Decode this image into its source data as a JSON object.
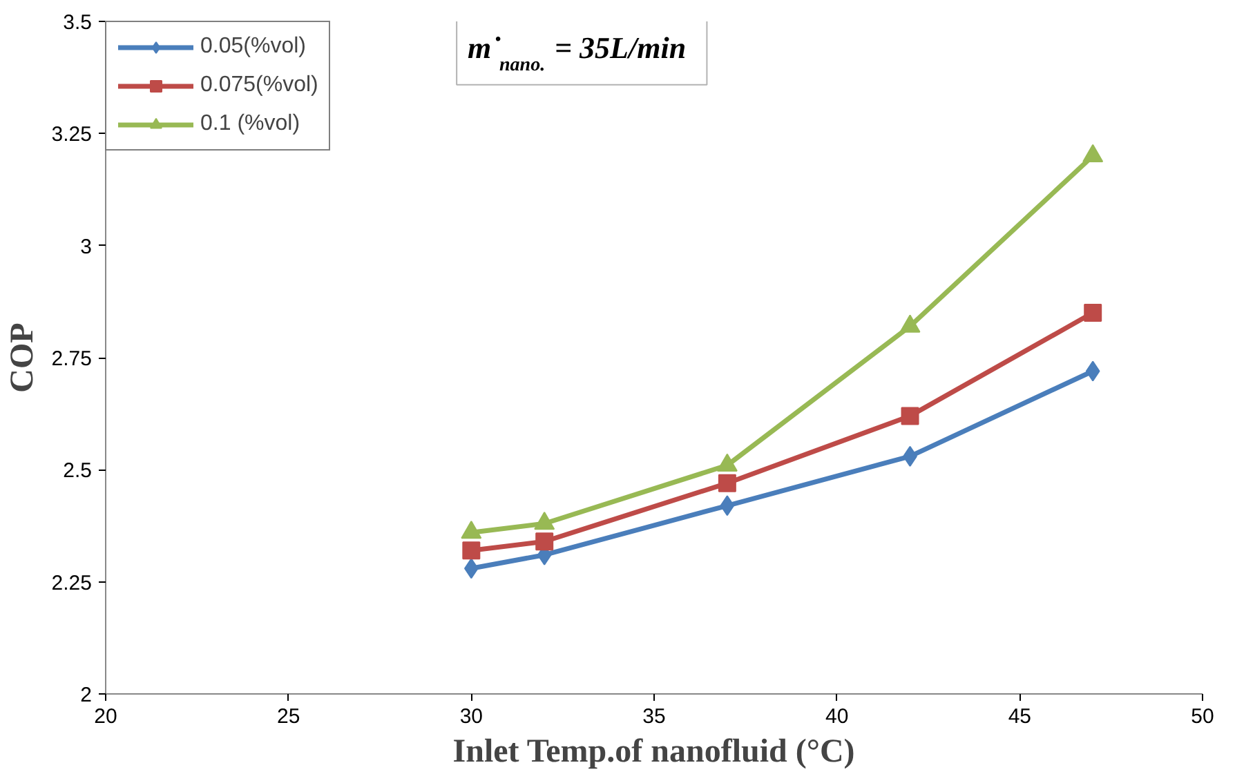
{
  "chart_data": {
    "type": "line",
    "xlabel": "Inlet Temp.of nanofluid (°C)",
    "ylabel": "COP",
    "x": [
      30,
      32,
      37,
      42,
      47
    ],
    "series": [
      {
        "name": "0.05(%vol)",
        "color": "#4a7ebb",
        "values": [
          2.28,
          2.31,
          2.42,
          2.53,
          2.72
        ],
        "marker": "diamond"
      },
      {
        "name": "0.075(%vol)",
        "color": "#be4b48",
        "values": [
          2.32,
          2.34,
          2.47,
          2.62,
          2.85
        ],
        "marker": "square"
      },
      {
        "name": "0.1 (%vol)",
        "color": "#98b954",
        "values": [
          2.36,
          2.38,
          2.51,
          2.82,
          3.2
        ],
        "marker": "triangle"
      }
    ],
    "xlim": [
      20,
      50
    ],
    "xticks": [
      20,
      25,
      30,
      35,
      40,
      45,
      50
    ],
    "ylim": [
      2,
      3.5
    ],
    "yticks": [
      2,
      2.25,
      2.5,
      2.75,
      3,
      3.25,
      3.5
    ],
    "grid": false,
    "legend": "top left",
    "annotations": [
      "m˙$_{nano.}$= 35L/min"
    ]
  }
}
